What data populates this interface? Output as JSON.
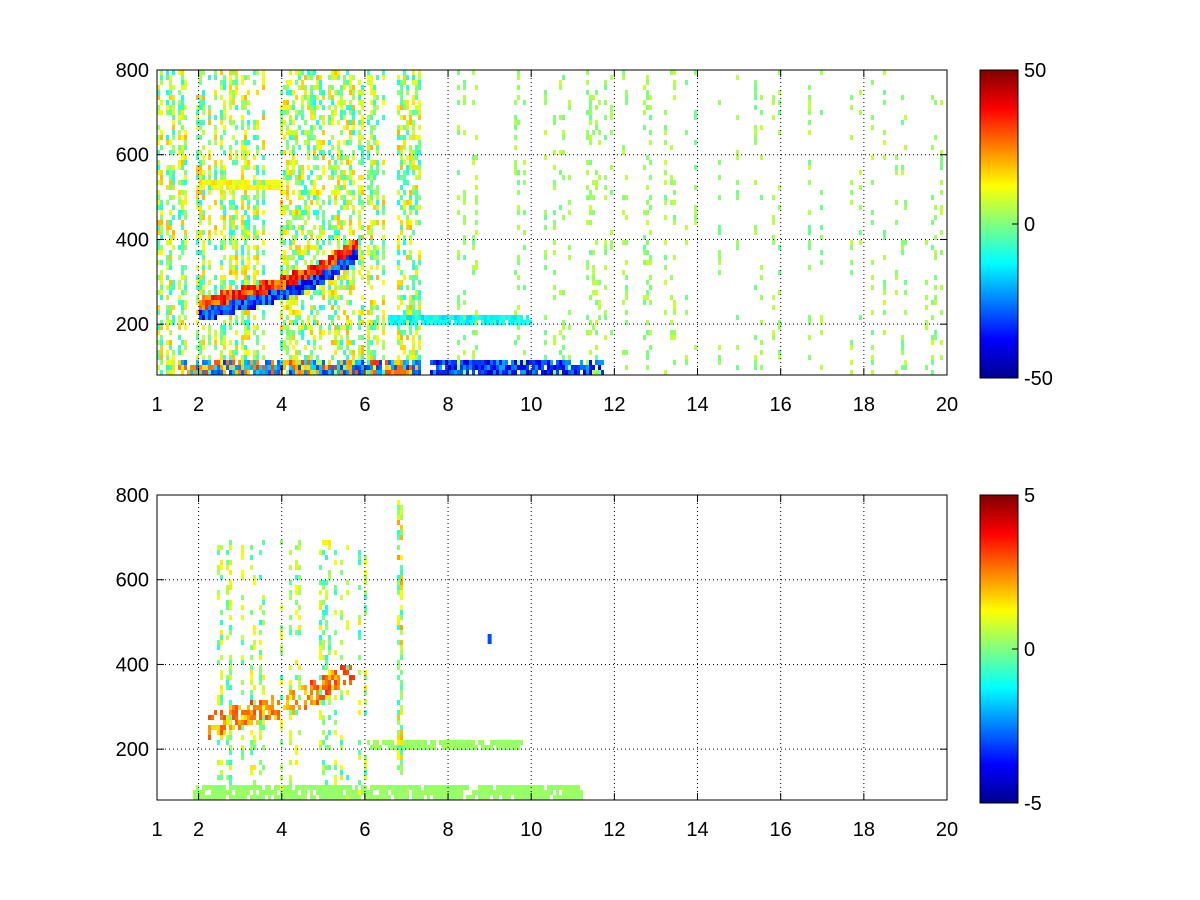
{
  "chart_data": [
    {
      "type": "heatmap",
      "title": "",
      "xlabel": "",
      "ylabel": "",
      "xlim": [
        1,
        20
      ],
      "ylim": [
        80,
        800
      ],
      "xticks": [
        "1",
        "2",
        "4",
        "6",
        "8",
        "10",
        "12",
        "14",
        "16",
        "18",
        "20"
      ],
      "yticks": [
        "200",
        "400",
        "600",
        "800"
      ],
      "grid": true,
      "colormap": "jet",
      "colorbar": {
        "min": -50,
        "max": 50,
        "ticks": [
          "50",
          "0",
          "-50"
        ]
      },
      "bands": [
        {
          "name": "low-frequency band",
          "y": 100,
          "x": [
            1.5,
            7.3
          ],
          "value": 30,
          "note": "alternating strong red/blue near y≈100"
        },
        {
          "name": "low-frequency band (blue)",
          "y": 100,
          "x": [
            7.5,
            11.7
          ],
          "value": -40
        },
        {
          "name": "ridge",
          "points": [
            [
              2.0,
              240
            ],
            [
              3.0,
              265
            ],
            [
              4.0,
              290
            ],
            [
              5.0,
              330
            ],
            [
              5.8,
              385
            ]
          ],
          "value": 40,
          "note": "red ridge above with blue ridge below"
        },
        {
          "name": "upper band",
          "y": 540,
          "x": [
            2.0,
            4.0
          ],
          "value": 15
        },
        {
          "name": "mid band",
          "y": 220,
          "x": [
            6.5,
            10.0
          ],
          "value": -15
        },
        {
          "name": "sparse scatter",
          "x": [
            8,
            20
          ],
          "value": 3,
          "note": "sparse yellow-green/cyan speckle filling most of the range"
        }
      ]
    },
    {
      "type": "heatmap",
      "title": "",
      "xlabel": "",
      "ylabel": "",
      "xlim": [
        1,
        20
      ],
      "ylim": [
        80,
        800
      ],
      "xticks": [
        "1",
        "2",
        "4",
        "6",
        "8",
        "10",
        "12",
        "14",
        "16",
        "18",
        "20"
      ],
      "yticks": [
        "200",
        "400",
        "600",
        "800"
      ],
      "grid": true,
      "colormap": "jet",
      "colorbar": {
        "min": -5,
        "max": 5,
        "ticks": [
          "5",
          "0",
          "-5"
        ]
      },
      "bands": [
        {
          "name": "low-frequency band",
          "y": 100,
          "x": [
            1.8,
            11.2
          ],
          "value": 0.3
        },
        {
          "name": "ridge",
          "points": [
            [
              2.2,
              260
            ],
            [
              3.0,
              285
            ],
            [
              4.0,
              310
            ],
            [
              5.0,
              350
            ],
            [
              5.8,
              400
            ]
          ],
          "value": 3
        },
        {
          "name": "mid band",
          "y": 220,
          "x": [
            6.0,
            9.8
          ],
          "value": 0.3
        },
        {
          "name": "vertical stripe",
          "x": 6.8,
          "y": [
            150,
            790
          ],
          "value": 2
        },
        {
          "name": "isolated blue point",
          "x": 9.0,
          "y": 460,
          "value": -3
        }
      ]
    }
  ]
}
